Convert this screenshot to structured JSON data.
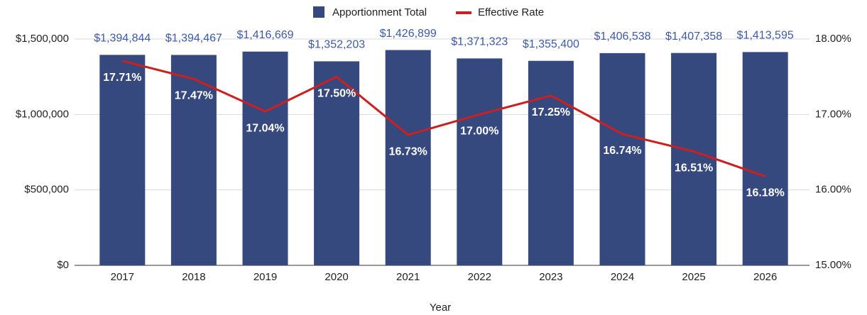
{
  "chart_data": {
    "type": "bar_line",
    "x_label": "Year",
    "categories": [
      "2017",
      "2018",
      "2019",
      "2020",
      "2021",
      "2022",
      "2023",
      "2024",
      "2025",
      "2026"
    ],
    "series": [
      {
        "name": "Apportionment Total",
        "type": "bar",
        "color": "#35497f",
        "values": [
          1394844,
          1394467,
          1416669,
          1352203,
          1426899,
          1371323,
          1355400,
          1406538,
          1407358,
          1413595
        ],
        "value_labels": [
          "$1,394,844",
          "$1,394,467",
          "$1,416,669",
          "$1,352,203",
          "$1,426,899",
          "$1,371,323",
          "$1,355,400",
          "$1,406,538",
          "$1,407,358",
          "$1,413,595"
        ]
      },
      {
        "name": "Effective Rate",
        "type": "line",
        "axis": "y2",
        "color": "#cc1f1f",
        "values": [
          17.71,
          17.47,
          17.04,
          17.5,
          16.73,
          17.0,
          17.25,
          16.74,
          16.51,
          16.18
        ],
        "value_labels": [
          "17.71%",
          "17.47%",
          "17.04%",
          "17.50%",
          "16.73%",
          "17.00%",
          "17.25%",
          "16.74%",
          "16.51%",
          "16.18%"
        ]
      }
    ],
    "ylim": [
      0,
      1500000
    ],
    "yticks": [
      {
        "value": 0,
        "label": "$0"
      },
      {
        "value": 500000,
        "label": "$500,000"
      },
      {
        "value": 1000000,
        "label": "$1,000,000"
      },
      {
        "value": 1500000,
        "label": "$1,500,000"
      }
    ],
    "y2lim": [
      15,
      18
    ],
    "y2ticks": [
      {
        "value": 15,
        "label": "15.00%"
      },
      {
        "value": 16,
        "label": "16.00%"
      },
      {
        "value": 17,
        "label": "17.00%"
      },
      {
        "value": 18,
        "label": "18.00%"
      }
    ],
    "grid": true,
    "legend": "top"
  }
}
